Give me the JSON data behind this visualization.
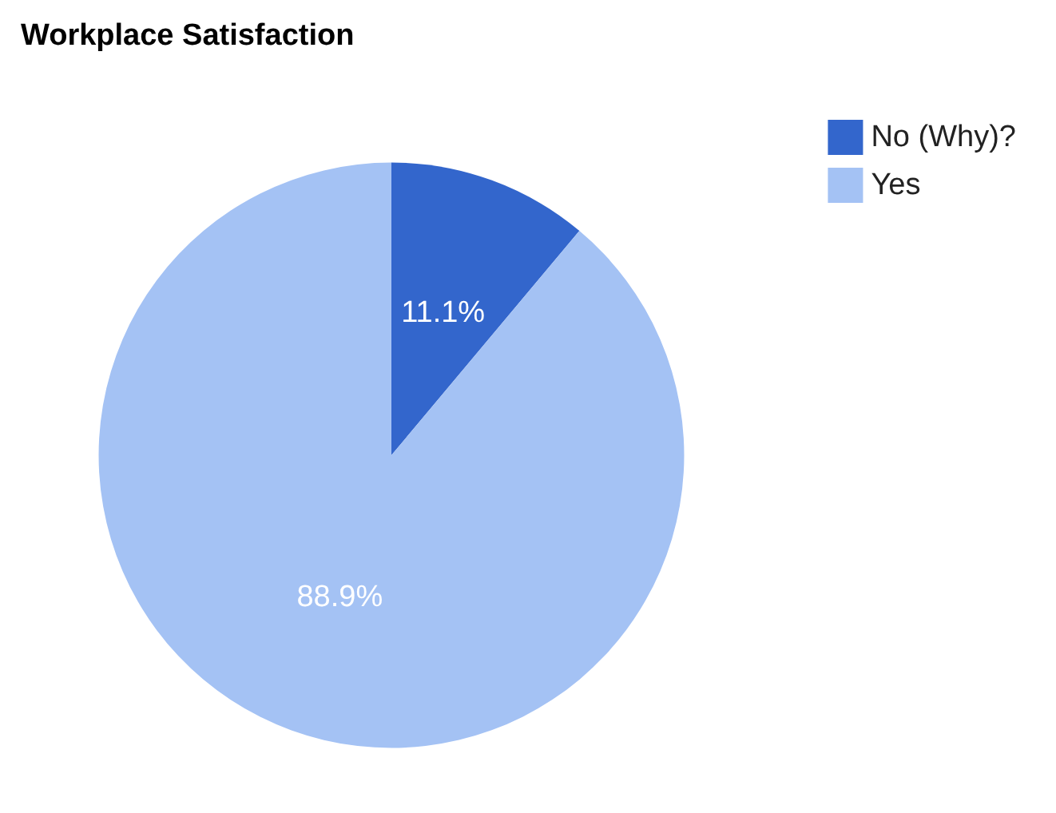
{
  "chart_data": {
    "type": "pie",
    "title": "Workplace Satisfaction",
    "categories": [
      "No (Why)?",
      "Yes"
    ],
    "values": [
      11.1,
      88.9
    ],
    "colors": [
      "#3366cc",
      "#a4c2f4"
    ],
    "value_labels": [
      "11.1%",
      "88.9%"
    ],
    "legend": "top right"
  }
}
